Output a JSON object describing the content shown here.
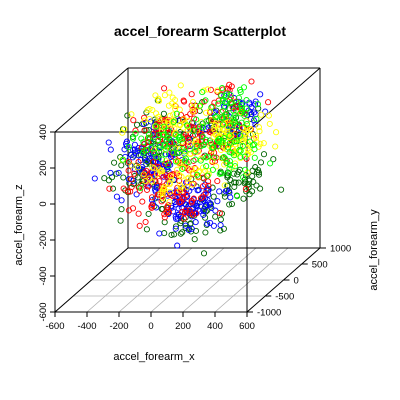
{
  "chart_data": {
    "type": "scatter",
    "projection": "3d",
    "title": "accel_forearm Scatterplot",
    "xlabel": "accel_forearm_x",
    "ylabel": "accel_forearm_y",
    "zlabel": "accel_forearm_z",
    "xlim": [
      -600,
      600
    ],
    "ylim": [
      -1000,
      1000
    ],
    "zlim": [
      -600,
      400
    ],
    "x_ticks": [
      "-600",
      "-400",
      "-200",
      "0",
      "200",
      "400",
      "600"
    ],
    "y_ticks": [
      "-1000",
      "-500",
      "0",
      "500",
      "1000"
    ],
    "z_ticks": [
      "-600",
      "-400",
      "-200",
      "0",
      "200",
      "400"
    ],
    "grid": "floor",
    "point_colors": [
      "#006400",
      "#0000ff",
      "#ff0000",
      "#ffff00",
      "#00ff00"
    ],
    "series": [
      {
        "color": "#006400",
        "clusters": [
          [
            -250,
            300,
            150
          ],
          [
            150,
            300,
            200
          ],
          [
            -200,
            -300,
            50
          ],
          [
            100,
            -350,
            -200
          ],
          [
            300,
            0,
            -50
          ]
        ]
      },
      {
        "color": "#0000ff",
        "clusters": [
          [
            -300,
            300,
            50
          ],
          [
            -150,
            -350,
            100
          ],
          [
            100,
            -300,
            -150
          ],
          [
            200,
            300,
            250
          ],
          [
            0,
            0,
            -200
          ]
        ]
      },
      {
        "color": "#ff0000",
        "clusters": [
          [
            -200,
            300,
            150
          ],
          [
            100,
            300,
            300
          ],
          [
            -100,
            -300,
            0
          ],
          [
            150,
            0,
            150
          ],
          [
            0,
            -300,
            -100
          ]
        ]
      },
      {
        "color": "#ffff00",
        "clusters": [
          [
            -150,
            300,
            250
          ],
          [
            150,
            300,
            150
          ],
          [
            0,
            -300,
            50
          ],
          [
            250,
            0,
            100
          ]
        ]
      },
      {
        "color": "#00ff00",
        "clusters": [
          [
            -200,
            300,
            100
          ],
          [
            200,
            300,
            300
          ],
          [
            250,
            0,
            100
          ]
        ]
      }
    ]
  }
}
